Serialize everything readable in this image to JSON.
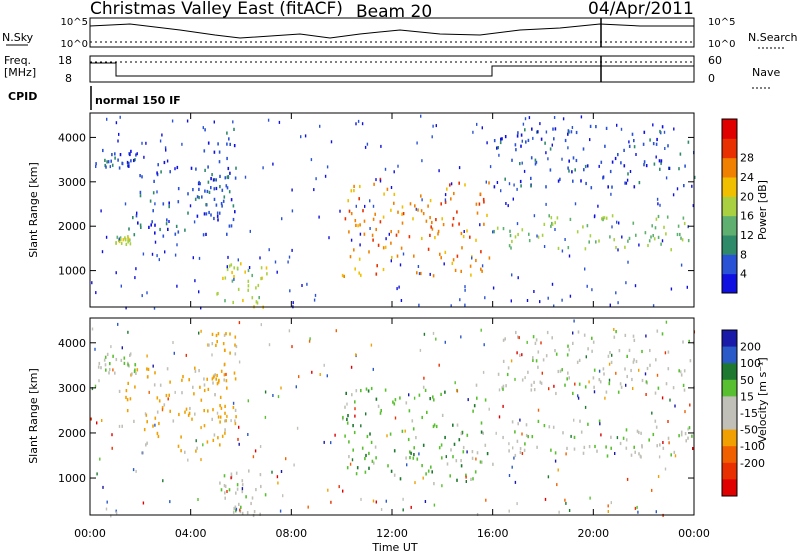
{
  "title": {
    "radar": "Christmas Valley East (fitACF)",
    "beam": "Beam 20",
    "date": "04/Apr/2011"
  },
  "header_panels": {
    "nsky_label": "N.Sky",
    "nsky_ticks": [
      "10^5",
      "10^0"
    ],
    "nsearch_label": "N.Search",
    "nsearch_ticks": [
      "10^5",
      "10^0"
    ],
    "freq_label": "Freq.",
    "freq_unit": "[MHz]",
    "freq_ticks": [
      "18",
      "8"
    ],
    "nave_label": "Nave",
    "nave_ticks": [
      "60",
      "0"
    ],
    "cpid_label": "CPID",
    "cpid_value": "normal 150 IF"
  },
  "colors": {
    "power_scale": [
      "#1010e0",
      "#2a52d6",
      "#2f8a6a",
      "#5fb070",
      "#a8d040",
      "#f0c000",
      "#f08000",
      "#e83000",
      "#e00000"
    ],
    "velocity_scale": [
      "#1a1aa8",
      "#2a5ac8",
      "#1e7830",
      "#58c030",
      "#c0c0b8",
      "#c0c0b8",
      "#f0a000",
      "#f06000",
      "#e83000",
      "#e00000"
    ]
  },
  "chart_data": [
    {
      "type": "heatmap",
      "panel": "power",
      "ylabel": "Slant Range [km]",
      "xlabel": "Time UT",
      "x_ticks": [
        "00:00",
        "04:00",
        "08:00",
        "12:00",
        "16:00",
        "20:00",
        "00:00"
      ],
      "y_ticks": [
        1000,
        2000,
        3000,
        4000
      ],
      "xlim_hours": [
        0,
        24
      ],
      "ylim_km": [
        180,
        4550
      ],
      "colorbar": {
        "label": "Power [dB]",
        "ticks": [
          4,
          8,
          12,
          16,
          20,
          24,
          28
        ]
      },
      "echo_regions": [
        {
          "t": [
            0.2,
            1.8
          ],
          "r": [
            3300,
            3800
          ],
          "power_db": 4
        },
        {
          "t": [
            1.0,
            1.6
          ],
          "r": [
            1600,
            1800
          ],
          "power_db": 16
        },
        {
          "t": [
            1.5,
            5.5
          ],
          "r": [
            1800,
            3500
          ],
          "power_db": 4
        },
        {
          "t": [
            4.5,
            5.8
          ],
          "r": [
            2000,
            4300
          ],
          "power_db": 4
        },
        {
          "t": [
            5.0,
            7.0
          ],
          "r": [
            200,
            1200
          ],
          "power_db": 16
        },
        {
          "t": [
            10.0,
            16.0
          ],
          "r": [
            900,
            3100
          ],
          "power_db": 24
        },
        {
          "t": [
            16.0,
            24.0
          ],
          "r": [
            1500,
            2300
          ],
          "power_db": 14
        },
        {
          "t": [
            16.0,
            24.0
          ],
          "r": [
            2900,
            4300
          ],
          "power_db": 4
        }
      ]
    },
    {
      "type": "heatmap",
      "panel": "velocity",
      "ylabel": "Slant Range [km]",
      "xlabel": "Time UT",
      "x_ticks": [
        "00:00",
        "04:00",
        "08:00",
        "12:00",
        "16:00",
        "20:00",
        "00:00"
      ],
      "y_ticks": [
        1000,
        2000,
        3000,
        4000
      ],
      "xlim_hours": [
        0,
        24
      ],
      "ylim_km": [
        180,
        4550
      ],
      "colorbar": {
        "label": "Velocity [m s⁻¹]",
        "ticks": [
          200,
          100,
          50,
          15,
          -15,
          -50,
          -100,
          -200
        ]
      },
      "echo_regions": [
        {
          "t": [
            0.2,
            1.8
          ],
          "r": [
            3300,
            3800
          ],
          "velocity": 0
        },
        {
          "t": [
            1.0,
            5.5
          ],
          "r": [
            1600,
            3500
          ],
          "velocity": -60
        },
        {
          "t": [
            4.5,
            5.8
          ],
          "r": [
            2000,
            4300
          ],
          "velocity": -60
        },
        {
          "t": [
            5.0,
            7.0
          ],
          "r": [
            200,
            1200
          ],
          "velocity": 0
        },
        {
          "t": [
            10.0,
            16.0
          ],
          "r": [
            900,
            3100
          ],
          "velocity": 30
        },
        {
          "t": [
            16.0,
            24.0
          ],
          "r": [
            1500,
            2300
          ],
          "velocity": 0
        },
        {
          "t": [
            16.0,
            24.0
          ],
          "r": [
            2900,
            4300
          ],
          "velocity": 0
        }
      ]
    }
  ]
}
